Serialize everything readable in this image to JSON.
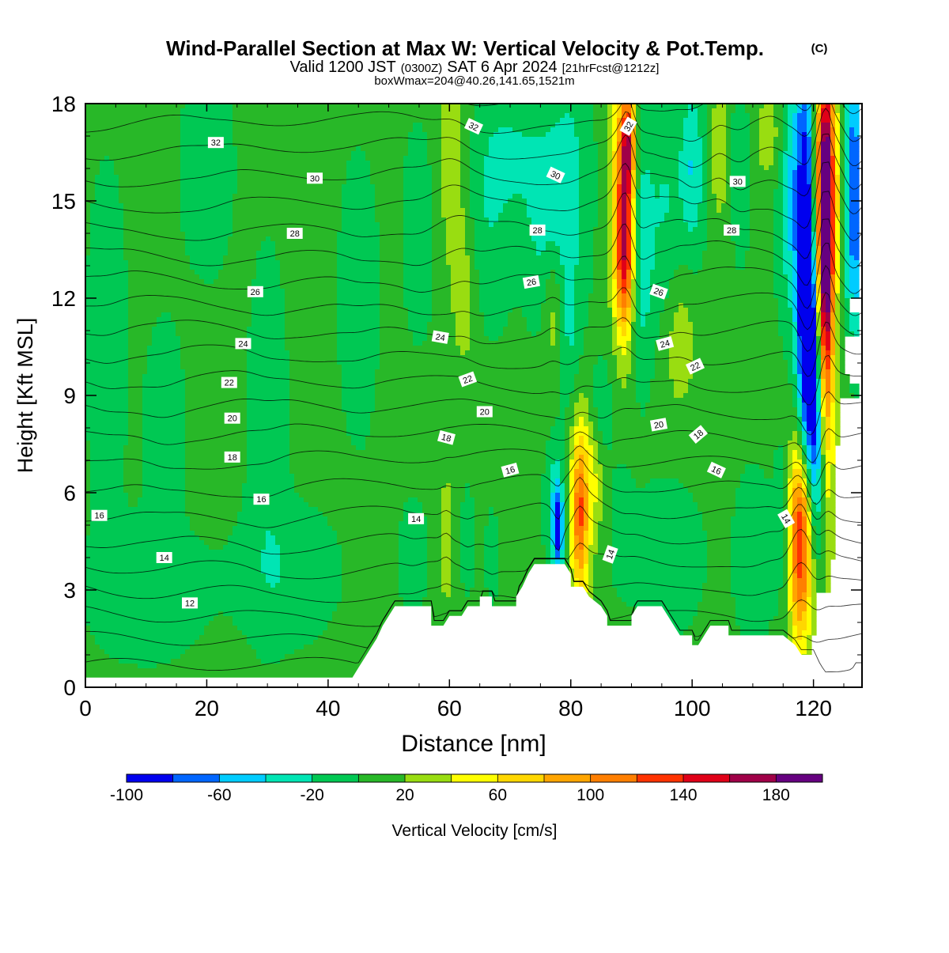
{
  "title": {
    "main": "Wind-Parallel Section at Max W: Vertical Velocity & Pot.Temp.",
    "copyright_mark": "(C)",
    "valid_prefix": "Valid 1200 JST",
    "valid_utc": "(0300Z)",
    "valid_date": "SAT 6 Apr 2024",
    "forecast_info": "[21hrFcst@1212z]",
    "box_info": "boxWmax=204@40.26,141.65,1521m"
  },
  "chart_data": {
    "type": "heatmap",
    "xlabel": "Distance [nm]",
    "ylabel": "Height [Kft MSL]",
    "xlim": [
      0,
      128
    ],
    "ylim": [
      0,
      18
    ],
    "x_ticks": [
      "0",
      "20",
      "40",
      "60",
      "80",
      "100",
      "120"
    ],
    "y_ticks": [
      "0",
      "3",
      "6",
      "9",
      "12",
      "15",
      "18"
    ],
    "colorbar": {
      "label": "Vertical Velocity [cm/s]",
      "tick_labels": [
        "-100",
        "-60",
        "-20",
        "20",
        "60",
        "100",
        "140",
        "180"
      ],
      "levels": [
        -100,
        -80,
        -60,
        -40,
        -20,
        0,
        20,
        40,
        60,
        80,
        100,
        120,
        140,
        160,
        180,
        200
      ],
      "colors": [
        "#0000ee",
        "#0066ff",
        "#00ccff",
        "#00e5b4",
        "#00c853",
        "#28b828",
        "#99dd11",
        "#ffff00",
        "#ffd700",
        "#ffa500",
        "#ff7f00",
        "#ff3300",
        "#e00018",
        "#a00048",
        "#660080"
      ]
    },
    "background_w": 5,
    "terrain": [
      [
        0,
        0.3
      ],
      [
        40,
        0.3
      ],
      [
        44,
        0.3
      ],
      [
        45,
        0.6
      ],
      [
        46,
        0.9
      ],
      [
        47,
        1.2
      ],
      [
        48,
        1.5
      ],
      [
        49,
        1.9
      ],
      [
        50,
        2.2
      ],
      [
        51,
        2.5
      ],
      [
        57,
        2.5
      ],
      [
        57,
        1.9
      ],
      [
        59,
        1.9
      ],
      [
        60,
        2.2
      ],
      [
        62,
        2.2
      ],
      [
        63,
        2.5
      ],
      [
        65,
        2.5
      ],
      [
        65,
        2.8
      ],
      [
        67,
        2.8
      ],
      [
        67,
        2.5
      ],
      [
        69,
        2.5
      ],
      [
        71,
        2.5
      ],
      [
        71,
        2.8
      ],
      [
        72,
        3.1
      ],
      [
        73,
        3.5
      ],
      [
        74,
        3.8
      ],
      [
        79,
        3.8
      ],
      [
        80,
        3.5
      ],
      [
        80,
        3.1
      ],
      [
        82,
        3.1
      ],
      [
        83,
        2.8
      ],
      [
        85,
        2.5
      ],
      [
        86,
        2.2
      ],
      [
        86,
        1.9
      ],
      [
        90,
        1.9
      ],
      [
        90,
        2.2
      ],
      [
        91,
        2.5
      ],
      [
        95,
        2.5
      ],
      [
        96,
        2.2
      ],
      [
        97,
        1.9
      ],
      [
        98,
        1.6
      ],
      [
        100,
        1.6
      ],
      [
        100,
        1.3
      ],
      [
        101,
        1.3
      ],
      [
        102,
        1.6
      ],
      [
        103,
        1.9
      ],
      [
        106,
        1.9
      ],
      [
        106,
        1.6
      ],
      [
        115,
        1.6
      ],
      [
        117,
        1.3
      ],
      [
        118,
        1.0
      ],
      [
        119,
        1.0
      ],
      [
        120,
        1.0
      ],
      [
        121,
        0.6
      ],
      [
        122,
        0.3
      ],
      [
        126,
        0.3
      ],
      [
        127,
        0.6
      ],
      [
        128,
        0.6
      ]
    ],
    "w_features": [
      {
        "x": 60.5,
        "y": 16.5,
        "rx": 2.5,
        "ry": 4.0,
        "w": 30
      },
      {
        "x": 62.5,
        "y": 12.0,
        "rx": 2.0,
        "ry": 2.5,
        "w": 25
      },
      {
        "x": 66.5,
        "y": 15.0,
        "rx": 4.0,
        "ry": 3.5,
        "w": -25
      },
      {
        "x": 71.0,
        "y": 16.5,
        "rx": 4.0,
        "ry": 2.0,
        "w": -20
      },
      {
        "x": 75.0,
        "y": 14.5,
        "rx": 3.0,
        "ry": 3.0,
        "w": -25
      },
      {
        "x": 79.5,
        "y": 15.5,
        "rx": 3.5,
        "ry": 3.5,
        "w": -35
      },
      {
        "x": 80.0,
        "y": 10.5,
        "rx": 2.0,
        "ry": 2.5,
        "w": -25
      },
      {
        "x": 77.0,
        "y": 11.5,
        "rx": 1.5,
        "ry": 2.0,
        "w": 30
      },
      {
        "x": 88.5,
        "y": 15.5,
        "rx": 2.0,
        "ry": 4.5,
        "w": 75
      },
      {
        "x": 89.0,
        "y": 13.5,
        "rx": 1.5,
        "ry": 2.5,
        "w": 110
      },
      {
        "x": 89.5,
        "y": 16.8,
        "rx": 1.2,
        "ry": 1.5,
        "w": 100
      },
      {
        "x": 91.5,
        "y": 13.5,
        "rx": 2.0,
        "ry": 3.5,
        "w": -45
      },
      {
        "x": 95.5,
        "y": 15.0,
        "rx": 2.5,
        "ry": 3.5,
        "w": -25
      },
      {
        "x": 100.0,
        "y": 16.0,
        "rx": 2.0,
        "ry": 2.5,
        "w": -45
      },
      {
        "x": 98.0,
        "y": 10.5,
        "rx": 2.5,
        "ry": 2.0,
        "w": 30
      },
      {
        "x": 104.5,
        "y": 16.5,
        "rx": 1.5,
        "ry": 2.0,
        "w": 35
      },
      {
        "x": 108.0,
        "y": 16.0,
        "rx": 1.5,
        "ry": 2.5,
        "w": -25
      },
      {
        "x": 113.0,
        "y": 17.0,
        "rx": 3.0,
        "ry": 1.5,
        "w": 28
      },
      {
        "x": 116.0,
        "y": 15.5,
        "rx": 2.0,
        "ry": 3.5,
        "w": -45
      },
      {
        "x": 118.8,
        "y": 13.0,
        "rx": 1.8,
        "ry": 7.5,
        "w": -110
      },
      {
        "x": 119.5,
        "y": 11.0,
        "rx": 1.5,
        "ry": 4.0,
        "w": -70
      },
      {
        "x": 120.8,
        "y": 7.5,
        "rx": 1.5,
        "ry": 3.0,
        "w": -75
      },
      {
        "x": 120.8,
        "y": 15.0,
        "rx": 1.5,
        "ry": 3.5,
        "w": 70
      },
      {
        "x": 122.0,
        "y": 13.0,
        "rx": 1.5,
        "ry": 7.5,
        "w": 150
      },
      {
        "x": 122.2,
        "y": 14.5,
        "rx": 0.9,
        "ry": 3.5,
        "w": 80
      },
      {
        "x": 124.0,
        "y": 15.5,
        "rx": 1.5,
        "ry": 3.0,
        "w": 40
      },
      {
        "x": 126.5,
        "y": 16.0,
        "rx": 1.8,
        "ry": 4.0,
        "w": -75
      },
      {
        "x": 127.0,
        "y": 13.0,
        "rx": 1.5,
        "ry": 2.5,
        "w": -25
      },
      {
        "x": 81.5,
        "y": 5.5,
        "rx": 1.8,
        "ry": 3.3,
        "w": 80
      },
      {
        "x": 81.5,
        "y": 5.3,
        "rx": 1.0,
        "ry": 1.8,
        "w": 40
      },
      {
        "x": 84.0,
        "y": 6.5,
        "rx": 1.5,
        "ry": 2.0,
        "w": 30
      },
      {
        "x": 77.5,
        "y": 5.5,
        "rx": 1.5,
        "ry": 1.8,
        "w": -45
      },
      {
        "x": 78.0,
        "y": 4.8,
        "rx": 0.8,
        "ry": 1.2,
        "w": -75
      },
      {
        "x": 88.5,
        "y": 5.0,
        "rx": 1.8,
        "ry": 1.8,
        "w": -20
      },
      {
        "x": 96.0,
        "y": 4.0,
        "rx": 5.0,
        "ry": 2.0,
        "w": -25
      },
      {
        "x": 85.0,
        "y": 8.5,
        "rx": 1.8,
        "ry": 1.5,
        "w": -25
      },
      {
        "x": 110.0,
        "y": 4.0,
        "rx": 3.0,
        "ry": 2.5,
        "w": -20
      },
      {
        "x": 118.0,
        "y": 4.5,
        "rx": 2.2,
        "ry": 3.5,
        "w": 115
      },
      {
        "x": 118.0,
        "y": 4.8,
        "rx": 1.6,
        "ry": 2.5,
        "w": 45
      },
      {
        "x": 115.0,
        "y": 5.0,
        "rx": 1.5,
        "ry": 3.0,
        "w": -20
      },
      {
        "x": 121.0,
        "y": 4.0,
        "rx": 1.5,
        "ry": 2.5,
        "w": -20
      },
      {
        "x": 54.0,
        "y": 4.0,
        "rx": 2.0,
        "ry": 1.5,
        "w": -25
      },
      {
        "x": 59.5,
        "y": 4.5,
        "rx": 1.0,
        "ry": 2.0,
        "w": 35
      },
      {
        "x": 63.0,
        "y": 4.5,
        "rx": 1.0,
        "ry": 1.5,
        "w": -20
      },
      {
        "x": 67.0,
        "y": 4.0,
        "rx": 1.0,
        "ry": 1.3,
        "w": -20
      },
      {
        "x": 3.5,
        "y": 10.5,
        "rx": 3.0,
        "ry": 5.0,
        "w": -20
      },
      {
        "x": 20.0,
        "y": 16.0,
        "rx": 4.0,
        "ry": 3.0,
        "w": -20
      },
      {
        "x": 13.0,
        "y": 8.0,
        "rx": 3.0,
        "ry": 3.0,
        "w": -20
      },
      {
        "x": 30.0,
        "y": 8.0,
        "rx": 3.0,
        "ry": 5.0,
        "w": -20
      },
      {
        "x": 45.0,
        "y": 12.0,
        "rx": 3.0,
        "ry": 4.0,
        "w": -20
      },
      {
        "x": 55.0,
        "y": 14.0,
        "rx": 2.5,
        "ry": 3.0,
        "w": -20
      },
      {
        "x": 10.0,
        "y": 3.0,
        "rx": 9.0,
        "ry": 2.0,
        "w": -20
      },
      {
        "x": 33.0,
        "y": 3.5,
        "rx": 8.0,
        "ry": 2.0,
        "w": -20
      }
    ],
    "theta_contour_levels": [
      12,
      14,
      16,
      18,
      20,
      22,
      24,
      26,
      28,
      30,
      32
    ],
    "theta_labels": [
      {
        "text": "32",
        "x": 21.5,
        "y": 16.8,
        "angle": 0
      },
      {
        "text": "30",
        "x": 37.8,
        "y": 15.7,
        "angle": 0
      },
      {
        "text": "28",
        "x": 34.5,
        "y": 14.0,
        "angle": 0
      },
      {
        "text": "26",
        "x": 28.0,
        "y": 12.2,
        "angle": 0
      },
      {
        "text": "24",
        "x": 26.0,
        "y": 10.6,
        "angle": 0
      },
      {
        "text": "22",
        "x": 23.7,
        "y": 9.4,
        "angle": 0
      },
      {
        "text": "20",
        "x": 24.2,
        "y": 8.3,
        "angle": 0
      },
      {
        "text": "18",
        "x": 24.2,
        "y": 7.1,
        "angle": 0
      },
      {
        "text": "16",
        "x": 29.0,
        "y": 5.8,
        "angle": 0
      },
      {
        "text": "16",
        "x": 2.3,
        "y": 5.3,
        "angle": 0
      },
      {
        "text": "14",
        "x": 13.0,
        "y": 4.0,
        "angle": 0
      },
      {
        "text": "12",
        "x": 17.2,
        "y": 2.6,
        "angle": 0
      },
      {
        "text": "32",
        "x": 64.0,
        "y": 17.3,
        "angle": 25
      },
      {
        "text": "32",
        "x": 89.5,
        "y": 17.3,
        "angle": -60
      },
      {
        "text": "30",
        "x": 77.5,
        "y": 15.8,
        "angle": 25
      },
      {
        "text": "30",
        "x": 107.5,
        "y": 15.6,
        "angle": 0
      },
      {
        "text": "28",
        "x": 74.5,
        "y": 14.1,
        "angle": 0
      },
      {
        "text": "28",
        "x": 106.5,
        "y": 14.1,
        "angle": 0
      },
      {
        "text": "26",
        "x": 73.5,
        "y": 12.5,
        "angle": -10
      },
      {
        "text": "26",
        "x": 94.5,
        "y": 12.2,
        "angle": 20
      },
      {
        "text": "24",
        "x": 58.5,
        "y": 10.8,
        "angle": 10
      },
      {
        "text": "24",
        "x": 95.5,
        "y": 10.6,
        "angle": -15
      },
      {
        "text": "22",
        "x": 63.0,
        "y": 9.5,
        "angle": -20
      },
      {
        "text": "22",
        "x": 100.5,
        "y": 9.9,
        "angle": -25
      },
      {
        "text": "20",
        "x": 65.8,
        "y": 8.5,
        "angle": 0
      },
      {
        "text": "20",
        "x": 94.5,
        "y": 8.1,
        "angle": -10
      },
      {
        "text": "18",
        "x": 59.5,
        "y": 7.7,
        "angle": 15
      },
      {
        "text": "18",
        "x": 101.0,
        "y": 7.8,
        "angle": -40
      },
      {
        "text": "16",
        "x": 70.0,
        "y": 6.7,
        "angle": -15
      },
      {
        "text": "16",
        "x": 104.0,
        "y": 6.7,
        "angle": 25
      },
      {
        "text": "14",
        "x": 54.5,
        "y": 5.2,
        "angle": 0
      },
      {
        "text": "14",
        "x": 86.5,
        "y": 4.1,
        "angle": -70
      },
      {
        "text": "14",
        "x": 115.5,
        "y": 5.2,
        "angle": 60
      }
    ]
  }
}
